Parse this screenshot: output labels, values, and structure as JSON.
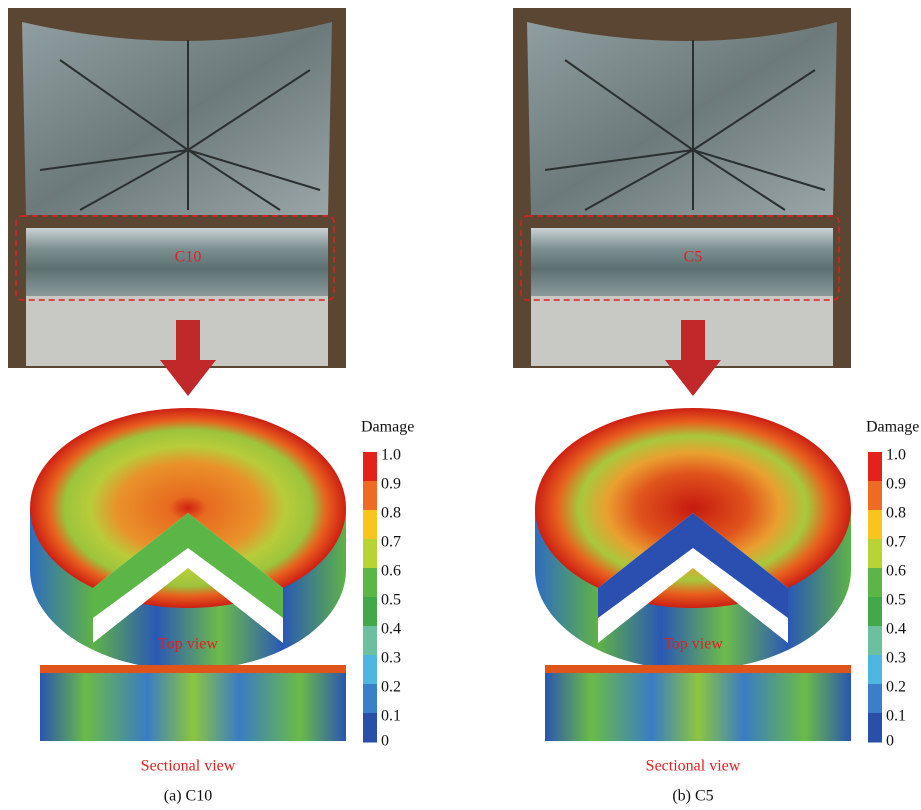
{
  "panels": [
    {
      "photo_label": "C10",
      "top_view": "Top view",
      "section_view": "Sectional view",
      "caption": "(a) C10",
      "colorbar": {
        "title": "Damage",
        "ticks": [
          "1.0",
          "0.9",
          "0.8",
          "0.7",
          "0.6",
          "0.5",
          "0.4",
          "0.3",
          "0.2",
          "0.1",
          "0"
        ]
      }
    },
    {
      "photo_label": "C5",
      "top_view": "Top view",
      "section_view": "Sectional view",
      "caption": "(b) C5",
      "colorbar": {
        "title": "Damage",
        "ticks": [
          "1.0",
          "0.9",
          "0.8",
          "0.7",
          "0.6",
          "0.5",
          "0.4",
          "0.3",
          "0.2",
          "0.1",
          "0"
        ]
      }
    }
  ]
}
